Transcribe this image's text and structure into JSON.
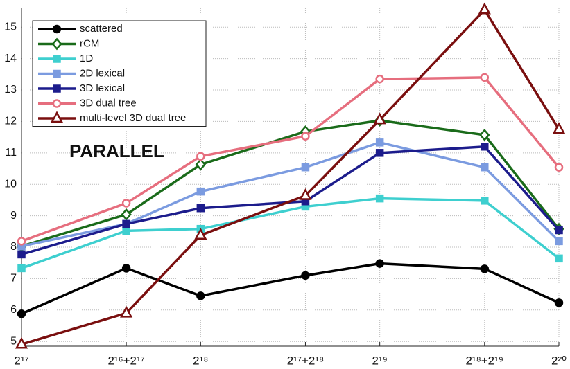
{
  "chart_data": {
    "type": "line",
    "annotation": "PARALLEL",
    "x": [
      131072,
      196608,
      262144,
      393216,
      524288,
      786432,
      1048576
    ],
    "xlim": [
      131072,
      1048576
    ],
    "xscale": "log2",
    "xticks": [
      {
        "value": 131072,
        "label": "2¹⁷"
      },
      {
        "value": 196608,
        "label": "2¹⁶+2¹⁷"
      },
      {
        "value": 262144,
        "label": "2¹⁸"
      },
      {
        "value": 393216,
        "label": "2¹⁷+2¹⁸"
      },
      {
        "value": 524288,
        "label": "2¹⁹"
      },
      {
        "value": 786432,
        "label": "2¹⁸+2¹⁹"
      },
      {
        "value": 1048576,
        "label": "2²⁰"
      }
    ],
    "ylim": [
      4.85,
      15.6
    ],
    "yticks": [
      5,
      6,
      7,
      8,
      9,
      10,
      11,
      12,
      13,
      14,
      15
    ],
    "grid": true,
    "legend_position": "upper left",
    "series": [
      {
        "name": "scattered",
        "color": "#000000",
        "marker": "circle",
        "values": [
          5.88,
          7.33,
          6.45,
          7.1,
          7.48,
          7.31,
          6.23
        ]
      },
      {
        "name": "rCM",
        "color": "#1a6b1a",
        "marker": "diamond",
        "values": [
          8.03,
          9.04,
          10.63,
          11.68,
          12.03,
          11.57,
          8.58
        ]
      },
      {
        "name": "1D",
        "color": "#3ecfcf",
        "marker": "square",
        "values": [
          7.33,
          8.52,
          8.58,
          9.29,
          9.55,
          9.48,
          7.64
        ]
      },
      {
        "name": "2D lexical",
        "color": "#7b9be0",
        "marker": "square",
        "values": [
          8.03,
          8.74,
          9.77,
          10.54,
          11.33,
          10.54,
          8.19
        ]
      },
      {
        "name": "3D lexical",
        "color": "#1c1c8c",
        "marker": "square",
        "values": [
          7.77,
          8.74,
          9.24,
          9.46,
          11.0,
          11.2,
          8.54
        ]
      },
      {
        "name": "3D dual tree",
        "color": "#e66e7e",
        "marker": "circle-open",
        "values": [
          8.19,
          9.4,
          10.89,
          11.53,
          13.35,
          13.4,
          10.54
        ]
      },
      {
        "name": "multi-level 3D dual tree",
        "color": "#7a0f0f",
        "marker": "triangle",
        "values": [
          4.91,
          5.9,
          8.38,
          9.64,
          12.05,
          15.55,
          11.75
        ]
      }
    ]
  }
}
